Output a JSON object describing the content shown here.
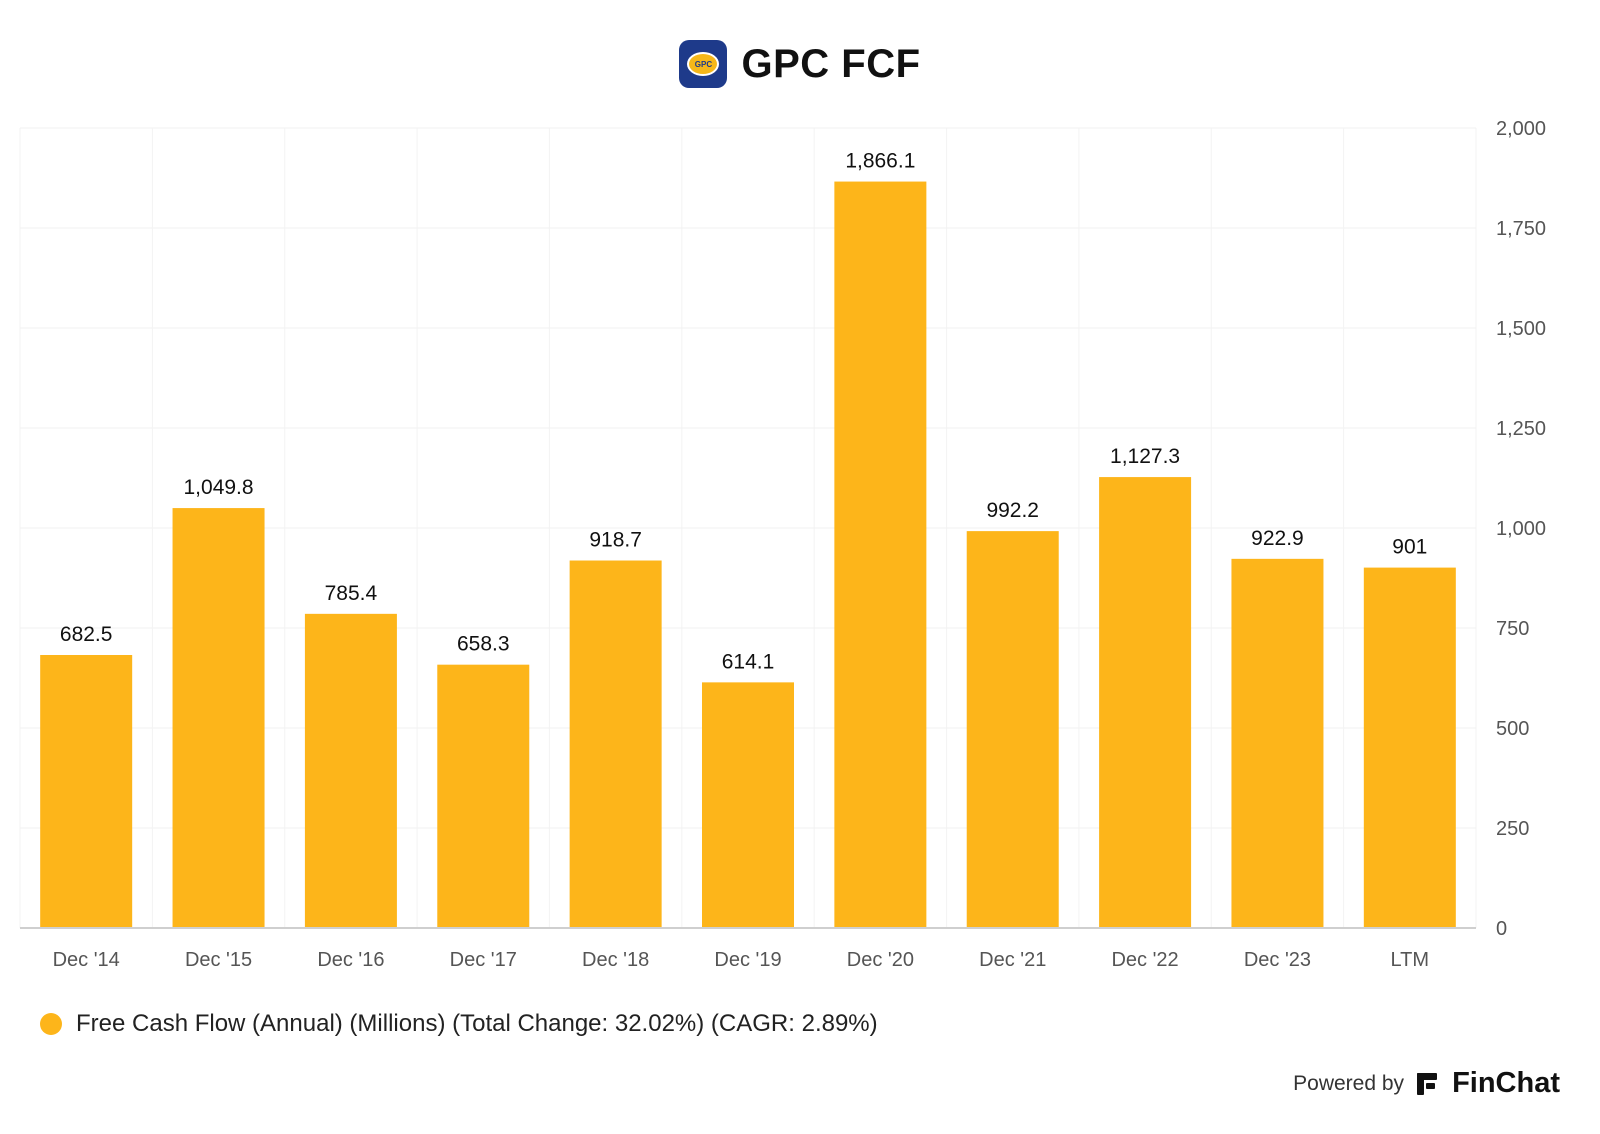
{
  "header": {
    "title": "GPC FCF",
    "logo_text": "GPC"
  },
  "chart_data": {
    "type": "bar",
    "categories": [
      "Dec '14",
      "Dec '15",
      "Dec '16",
      "Dec '17",
      "Dec '18",
      "Dec '19",
      "Dec '20",
      "Dec '21",
      "Dec '22",
      "Dec '23",
      "LTM"
    ],
    "series": [
      {
        "name": "Free Cash Flow (Annual) (Millions) (Total Change: 32.02%) (CAGR: 2.89%)",
        "values": [
          682.5,
          1049.8,
          785.4,
          658.3,
          918.7,
          614.1,
          1866.1,
          992.2,
          1127.3,
          922.9,
          901
        ],
        "labels": [
          "682.5",
          "1,049.8",
          "785.4",
          "658.3",
          "918.7",
          "614.1",
          "1,866.1",
          "992.2",
          "1,127.3",
          "922.9",
          "901"
        ],
        "color": "#FDB51A"
      }
    ],
    "ylim": [
      0,
      2000
    ],
    "yticks": [
      0,
      250,
      500,
      750,
      1000,
      1250,
      1500,
      1750,
      2000
    ],
    "ytick_labels": [
      "0",
      "250",
      "500",
      "750",
      "1,000",
      "1,250",
      "1,500",
      "1,750",
      "2,000"
    ],
    "y_axis_side": "right",
    "grid": true,
    "legend_position": "bottom-left"
  },
  "footer": {
    "powered_by": "Powered by",
    "brand": "FinChat"
  }
}
